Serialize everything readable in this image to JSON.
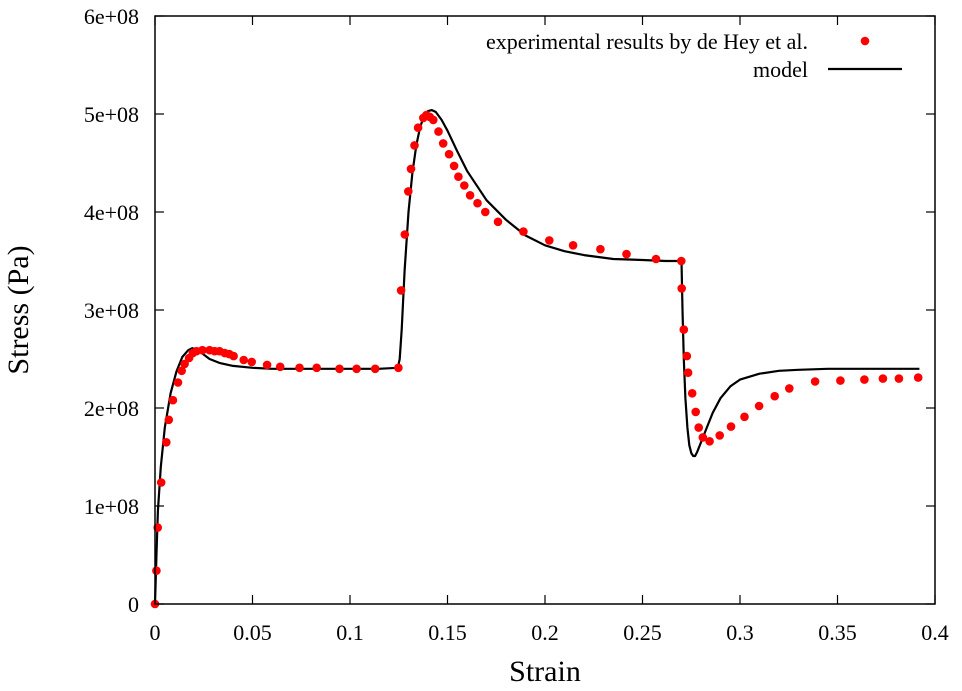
{
  "chart_data": {
    "type": "line",
    "title": "",
    "xlabel": "Strain",
    "ylabel": "Stress (Pa)",
    "xlim": [
      0,
      0.4
    ],
    "ylim": [
      0,
      600000000
    ],
    "xticks": [
      {
        "value": 0,
        "label": "0"
      },
      {
        "value": 0.05,
        "label": "0.05"
      },
      {
        "value": 0.1,
        "label": "0.1"
      },
      {
        "value": 0.15,
        "label": "0.15"
      },
      {
        "value": 0.2,
        "label": "0.2"
      },
      {
        "value": 0.25,
        "label": "0.25"
      },
      {
        "value": 0.3,
        "label": "0.3"
      },
      {
        "value": 0.35,
        "label": "0.35"
      },
      {
        "value": 0.4,
        "label": "0.4"
      }
    ],
    "yticks": [
      {
        "value": 0,
        "label": "0"
      },
      {
        "value": 100000000,
        "label": "1e+08"
      },
      {
        "value": 200000000,
        "label": "2e+08"
      },
      {
        "value": 300000000,
        "label": "3e+08"
      },
      {
        "value": 400000000,
        "label": "4e+08"
      },
      {
        "value": 500000000,
        "label": "5e+08"
      },
      {
        "value": 600000000,
        "label": "6e+08"
      }
    ],
    "grid": false,
    "legend_position": "top-right",
    "series": [
      {
        "name": "experimental results by de Hey et al.",
        "style": "points",
        "color": "#ff0000",
        "x": [
          0.0,
          0.0007,
          0.0014,
          0.0032,
          0.0058,
          0.0071,
          0.0092,
          0.0118,
          0.0137,
          0.0152,
          0.0175,
          0.0194,
          0.0213,
          0.0243,
          0.028,
          0.0306,
          0.0331,
          0.0358,
          0.0381,
          0.0403,
          0.0455,
          0.0496,
          0.0575,
          0.0642,
          0.0741,
          0.0829,
          0.0946,
          0.1034,
          0.1129,
          0.1248,
          0.1262,
          0.1281,
          0.1299,
          0.1313,
          0.1331,
          0.1349,
          0.1376,
          0.1392,
          0.1409,
          0.1427,
          0.1454,
          0.1478,
          0.1508,
          0.1534,
          0.1556,
          0.1586,
          0.1616,
          0.1654,
          0.1694,
          0.1759,
          0.1889,
          0.2022,
          0.2144,
          0.2284,
          0.2418,
          0.2569,
          0.2699,
          0.2701,
          0.2712,
          0.2727,
          0.2734,
          0.2755,
          0.2773,
          0.2788,
          0.2809,
          0.2844,
          0.2896,
          0.2954,
          0.3023,
          0.3098,
          0.3178,
          0.3253,
          0.3385,
          0.3515,
          0.3638,
          0.3733,
          0.3815,
          0.3914
        ],
        "y": [
          0,
          34000000,
          78000000,
          124000000,
          165000000,
          188000000,
          208000000,
          226000000,
          238000000,
          245000000,
          251000000,
          256000000,
          258000000,
          259000000,
          259000000,
          258000000,
          258000000,
          256000000,
          255000000,
          253000000,
          249000000,
          247000000,
          244000000,
          242000000,
          241000000,
          241000000,
          240000000,
          240000000,
          240000000,
          241000000,
          320000000,
          377000000,
          421000000,
          444000000,
          468000000,
          486000000,
          496000000,
          499000000,
          497000000,
          494000000,
          482000000,
          470000000,
          459000000,
          447000000,
          436000000,
          427000000,
          417000000,
          409000000,
          400000000,
          390000000,
          380000000,
          371000000,
          366000000,
          362000000,
          357000000,
          352000000,
          350000000,
          322000000,
          280000000,
          253000000,
          236000000,
          215000000,
          196000000,
          180000000,
          170000000,
          166000000,
          172000000,
          181000000,
          191000000,
          202000000,
          212000000,
          220000000,
          227000000,
          228000000,
          229000000,
          230000000,
          230000000,
          231000000
        ]
      },
      {
        "name": "model",
        "style": "line",
        "color": "#000000",
        "x": [
          0.0,
          0.0008,
          0.0015,
          0.003,
          0.005,
          0.008,
          0.011,
          0.014,
          0.017,
          0.019,
          0.021,
          0.024,
          0.028,
          0.033,
          0.04,
          0.05,
          0.06,
          0.075,
          0.09,
          0.105,
          0.115,
          0.1245,
          0.1255,
          0.1265,
          0.128,
          0.13,
          0.132,
          0.134,
          0.136,
          0.138,
          0.14,
          0.142,
          0.144,
          0.147,
          0.15,
          0.155,
          0.16,
          0.17,
          0.18,
          0.19,
          0.2,
          0.21,
          0.22,
          0.235,
          0.25,
          0.262,
          0.27,
          0.2705,
          0.2712,
          0.272,
          0.273,
          0.274,
          0.275,
          0.276,
          0.277,
          0.278,
          0.28,
          0.283,
          0.286,
          0.29,
          0.295,
          0.3,
          0.31,
          0.32,
          0.33,
          0.345,
          0.36,
          0.38,
          0.392
        ],
        "y": [
          0,
          55000000,
          95000000,
          140000000,
          180000000,
          215000000,
          237000000,
          252000000,
          259000000,
          261000000,
          260000000,
          256000000,
          250000000,
          246000000,
          243000000,
          241000000,
          240000000,
          240000000,
          240000000,
          240000000,
          240000000,
          241000000,
          250000000,
          280000000,
          340000000,
          400000000,
          440000000,
          468000000,
          487000000,
          498000000,
          503000000,
          504000000,
          502000000,
          494000000,
          483000000,
          462000000,
          442000000,
          412000000,
          392000000,
          376000000,
          366000000,
          360000000,
          356000000,
          352000000,
          351000000,
          350000000,
          350000000,
          300000000,
          250000000,
          210000000,
          180000000,
          162000000,
          154000000,
          151000000,
          151000000,
          155000000,
          165000000,
          180000000,
          195000000,
          210000000,
          222000000,
          229000000,
          235000000,
          238000000,
          239000000,
          240000000,
          240000000,
          240000000,
          240000000
        ]
      }
    ]
  }
}
